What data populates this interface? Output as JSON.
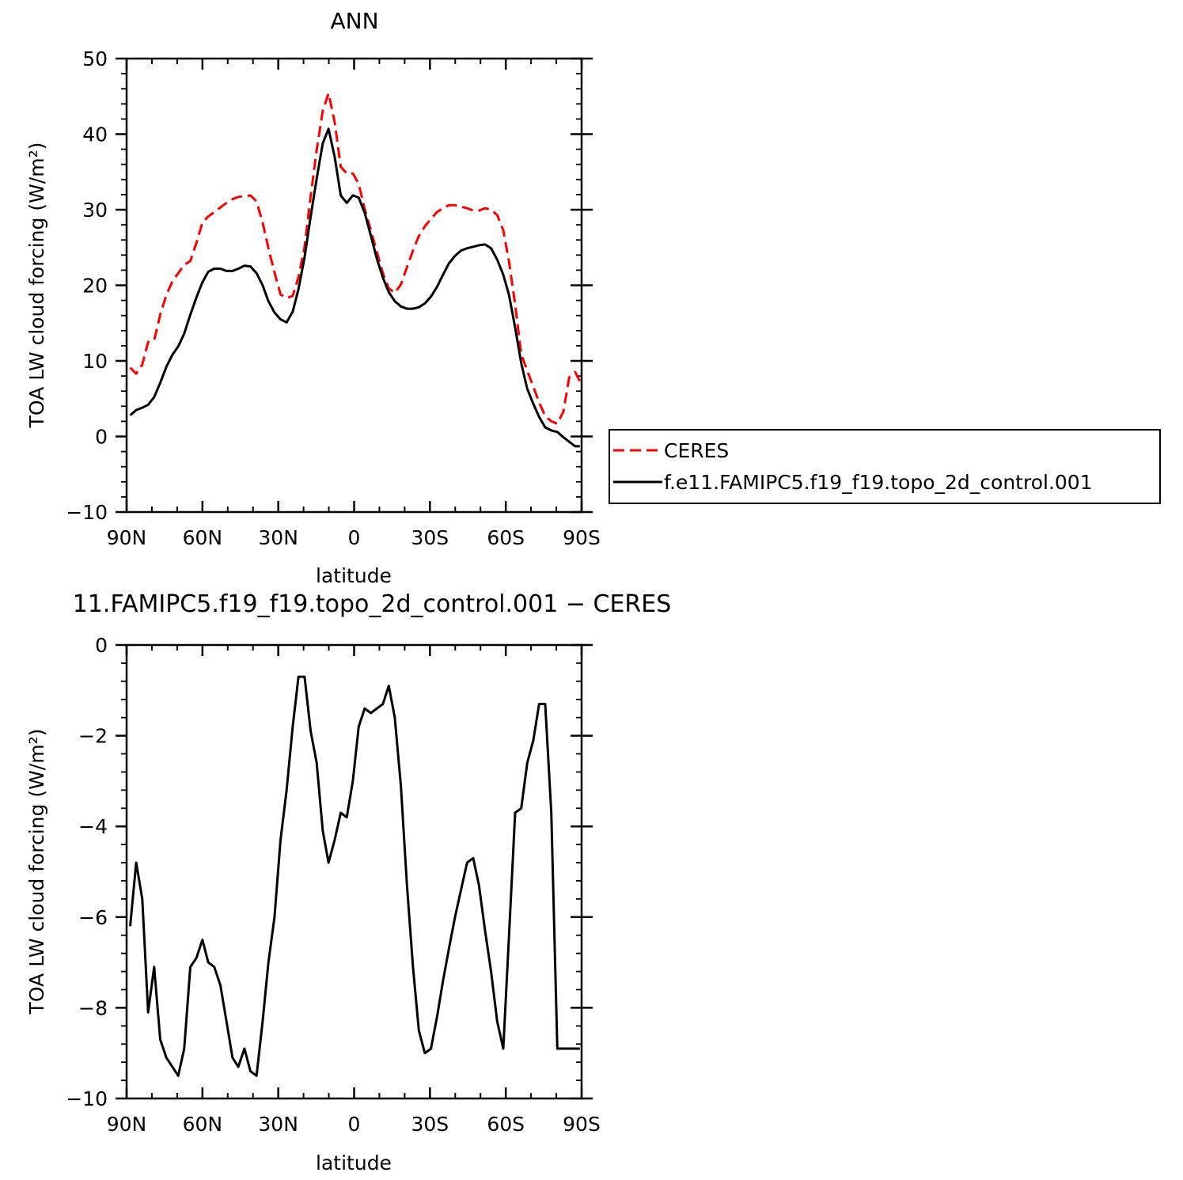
{
  "chart_data": [
    {
      "type": "line",
      "title": "ANN",
      "xlabel": "latitude",
      "ylabel": "TOA LW cloud forcing (W/m²)",
      "xlim": [
        90,
        -90
      ],
      "ylim": [
        -10,
        50
      ],
      "x_ticks": [
        90,
        60,
        30,
        0,
        -30,
        -60,
        -90
      ],
      "x_tick_labels": [
        "90N",
        "60N",
        "30N",
        "0",
        "30S",
        "60S",
        "90S"
      ],
      "y_ticks": [
        -10,
        0,
        10,
        20,
        30,
        40,
        50
      ],
      "y_tick_labels": [
        "−10",
        "0",
        "10",
        "20",
        "30",
        "40",
        "50"
      ],
      "legend_placement": "right",
      "series": [
        {
          "name": "CERES",
          "style": "dashed",
          "color": "#ff0000",
          "x": [
            88.6,
            86.2,
            83.8,
            81.5,
            79.1,
            76.7,
            74.3,
            71.9,
            69.6,
            67.2,
            64.8,
            62.4,
            60.0,
            57.7,
            55.3,
            52.9,
            50.5,
            48.1,
            45.8,
            43.4,
            41.0,
            38.6,
            36.2,
            33.9,
            31.5,
            29.1,
            26.7,
            24.3,
            22.0,
            19.6,
            17.2,
            14.8,
            12.4,
            10.1,
            7.7,
            5.3,
            2.9,
            0.5,
            -1.8,
            -4.2,
            -6.6,
            -9.0,
            -11.4,
            -13.7,
            -16.1,
            -18.5,
            -20.9,
            -23.3,
            -25.6,
            -28.0,
            -30.4,
            -32.8,
            -35.2,
            -37.5,
            -39.9,
            -42.3,
            -44.7,
            -47.1,
            -49.4,
            -51.8,
            -54.2,
            -56.6,
            -59.0,
            -61.3,
            -63.7,
            -66.1,
            -68.5,
            -70.9,
            -73.2,
            -75.6,
            -78.0,
            -80.4,
            -82.8,
            -85.1,
            -87.5,
            -89.3
          ],
          "y": [
            9.1,
            8.3,
            9.5,
            12.5,
            12.7,
            16.1,
            18.7,
            20.5,
            21.6,
            22.7,
            23.2,
            25.6,
            28.3,
            29.1,
            29.7,
            30.3,
            30.9,
            31.4,
            31.7,
            31.8,
            31.9,
            31.1,
            28.3,
            24.9,
            21.7,
            18.8,
            18.3,
            18.6,
            21.1,
            25.1,
            31.8,
            37.9,
            43.1,
            45.4,
            41.6,
            35.7,
            34.8,
            34.8,
            33.4,
            30.1,
            27.3,
            24.4,
            21.6,
            19.6,
            19.0,
            20.1,
            22.4,
            24.6,
            26.5,
            27.8,
            28.8,
            29.7,
            30.2,
            30.6,
            30.6,
            30.4,
            30.2,
            29.9,
            29.9,
            30.2,
            30.0,
            29.3,
            27.3,
            23.1,
            17.5,
            10.9,
            8.7,
            6.6,
            4.5,
            2.7,
            2.0,
            1.7,
            3.3,
            7.8,
            8.5,
            7.3
          ]
        },
        {
          "name": "f.e11.FAMIPC5.f19_f19.topo_2d_control.001",
          "style": "solid",
          "color": "#000000",
          "x": [
            88.6,
            86.2,
            83.8,
            81.5,
            79.1,
            76.7,
            74.3,
            71.9,
            69.6,
            67.2,
            64.8,
            62.4,
            60.0,
            57.7,
            55.3,
            52.9,
            50.5,
            48.1,
            45.8,
            43.4,
            41.0,
            38.6,
            36.2,
            33.9,
            31.5,
            29.1,
            26.7,
            24.3,
            22.0,
            19.6,
            17.2,
            14.8,
            12.4,
            10.1,
            7.7,
            5.3,
            2.9,
            0.5,
            -1.8,
            -4.2,
            -6.6,
            -9.0,
            -11.4,
            -13.7,
            -16.1,
            -18.5,
            -20.9,
            -23.3,
            -25.6,
            -28.0,
            -30.4,
            -32.8,
            -35.2,
            -37.5,
            -39.9,
            -42.3,
            -44.7,
            -47.1,
            -49.4,
            -51.8,
            -54.2,
            -56.6,
            -59.0,
            -61.3,
            -63.7,
            -66.1,
            -68.5,
            -70.9,
            -73.2,
            -75.6,
            -78.0,
            -80.4,
            -82.8,
            -85.1,
            -87.5,
            -89.3
          ],
          "y": [
            2.8,
            3.5,
            3.8,
            4.2,
            5.2,
            7.1,
            9.2,
            10.8,
            11.9,
            13.6,
            16.1,
            18.4,
            20.4,
            21.8,
            22.2,
            22.2,
            21.9,
            21.9,
            22.2,
            22.6,
            22.5,
            21.6,
            20.0,
            17.9,
            16.4,
            15.5,
            15.1,
            16.5,
            19.5,
            23.7,
            29.1,
            34.1,
            38.8,
            40.7,
            37.0,
            31.9,
            30.9,
            31.9,
            31.6,
            29.6,
            26.6,
            23.5,
            21.0,
            19.1,
            17.9,
            17.2,
            16.9,
            16.9,
            17.1,
            17.6,
            18.5,
            19.8,
            21.4,
            22.9,
            23.9,
            24.6,
            24.9,
            25.1,
            25.3,
            25.4,
            24.9,
            23.4,
            21.4,
            18.7,
            14.4,
            9.7,
            6.3,
            4.3,
            2.6,
            1.2,
            0.8,
            0.6,
            -0.1,
            -0.7,
            -1.3,
            -1.3
          ]
        }
      ]
    },
    {
      "type": "line",
      "title": "11.FAMIPC5.f19_f19.topo_2d_control.001 − CERES",
      "xlabel": "latitude",
      "ylabel": "TOA LW cloud forcing (W/m²)",
      "xlim": [
        90,
        -90
      ],
      "ylim": [
        -10,
        0
      ],
      "x_ticks": [
        90,
        60,
        30,
        0,
        -30,
        -60,
        -90
      ],
      "x_tick_labels": [
        "90N",
        "60N",
        "30N",
        "0",
        "30S",
        "60S",
        "90S"
      ],
      "y_ticks": [
        -10,
        -8,
        -6,
        -4,
        -2,
        0
      ],
      "y_tick_labels": [
        "−10",
        "−8",
        "−6",
        "−4",
        "−2",
        "0"
      ],
      "series": [
        {
          "style": "solid",
          "color": "#000000",
          "x": [
            88.6,
            86.2,
            83.8,
            81.5,
            79.1,
            76.7,
            74.3,
            71.9,
            69.6,
            67.2,
            64.8,
            62.4,
            60.0,
            57.7,
            55.3,
            52.9,
            50.5,
            48.1,
            45.8,
            43.4,
            41.0,
            38.6,
            36.2,
            33.9,
            31.5,
            29.1,
            26.7,
            24.3,
            22.0,
            19.6,
            17.2,
            14.8,
            12.4,
            10.1,
            7.7,
            5.3,
            2.9,
            0.5,
            -1.8,
            -4.2,
            -6.6,
            -9.0,
            -11.4,
            -13.7,
            -16.1,
            -18.5,
            -20.9,
            -23.3,
            -25.6,
            -28.0,
            -30.4,
            -32.8,
            -35.2,
            -37.5,
            -39.9,
            -42.3,
            -44.7,
            -47.1,
            -49.4,
            -51.8,
            -54.2,
            -56.6,
            -59.0,
            -61.3,
            -63.7,
            -66.1,
            -68.5,
            -70.9,
            -73.2,
            -75.6,
            -78.0,
            -80.4,
            -82.8,
            -85.1,
            -87.5,
            -89.3
          ],
          "y": [
            -6.2,
            -4.8,
            -5.6,
            -8.1,
            -7.1,
            -8.7,
            -9.1,
            -9.3,
            -9.5,
            -8.9,
            -7.1,
            -6.9,
            -6.5,
            -7.0,
            -7.1,
            -7.5,
            -8.3,
            -9.1,
            -9.3,
            -8.9,
            -9.4,
            -9.5,
            -8.3,
            -7.0,
            -6.0,
            -4.3,
            -3.2,
            -1.8,
            -0.7,
            -0.7,
            -1.9,
            -2.6,
            -4.1,
            -4.8,
            -4.3,
            -3.7,
            -3.8,
            -3.0,
            -1.8,
            -1.4,
            -1.5,
            -1.4,
            -1.3,
            -0.9,
            -1.6,
            -3.1,
            -5.3,
            -7.1,
            -8.5,
            -9.0,
            -8.9,
            -8.2,
            -7.4,
            -6.7,
            -6.0,
            -5.4,
            -4.8,
            -4.7,
            -5.3,
            -6.3,
            -7.2,
            -8.3,
            -8.9,
            -6.4,
            -3.7,
            -3.6,
            -2.6,
            -2.1,
            -1.3,
            -1.3,
            -3.7,
            -8.9,
            -8.9,
            -8.9,
            -8.9,
            -8.9
          ]
        }
      ]
    }
  ]
}
